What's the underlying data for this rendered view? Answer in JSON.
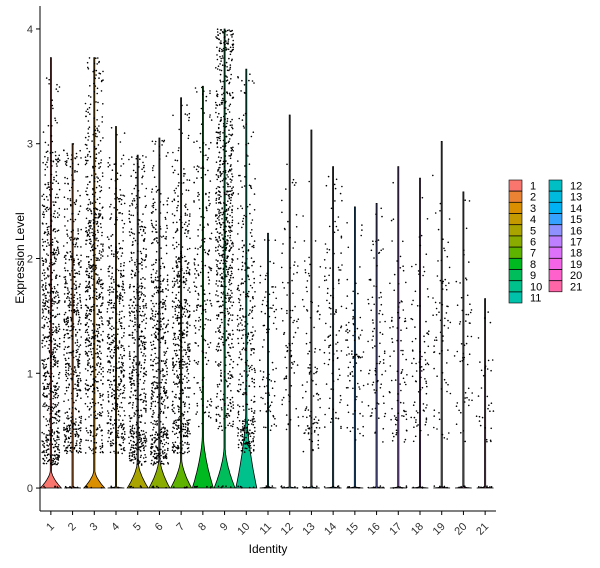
{
  "chart_data": {
    "type": "violin",
    "xlabel": "Identity",
    "ylabel": "Expression Level",
    "ylim": [
      -0.2,
      4.2
    ],
    "yticks": [
      0,
      1,
      2,
      3,
      4
    ],
    "grid": false,
    "legend_position": "right",
    "categories": [
      "1",
      "2",
      "3",
      "4",
      "5",
      "6",
      "7",
      "8",
      "9",
      "10",
      "11",
      "12",
      "13",
      "14",
      "15",
      "16",
      "17",
      "18",
      "19",
      "20",
      "21"
    ],
    "colors": [
      "#F8766D",
      "#EB8335",
      "#DA8F00",
      "#C49A00",
      "#AAA400",
      "#8AAB00",
      "#5EB300",
      "#00B81F",
      "#00BD5C",
      "#00C08B",
      "#00C1AA",
      "#00BFC4",
      "#00BADE",
      "#00B2F3",
      "#35A2FF",
      "#8F91FF",
      "#BE80FF",
      "#DD71FA",
      "#F365E6",
      "#FF61CC",
      "#FF66A8"
    ],
    "series": [
      {
        "name": "1",
        "max": 3.75,
        "zero_violin_height": 0.15,
        "upper_fraction": 0.83,
        "upper_range": [
          0.2,
          3.3
        ],
        "density_center": 1.4
      },
      {
        "name": "2",
        "max": 3.0,
        "zero_violin_height": 0.01,
        "upper_fraction": 0.62,
        "upper_range": [
          0.3,
          3.0
        ],
        "density_center": 1.3
      },
      {
        "name": "3",
        "max": 3.75,
        "zero_violin_height": 0.15,
        "upper_fraction": 0.82,
        "upper_range": [
          0.3,
          3.2
        ],
        "density_center": 1.8
      },
      {
        "name": "4",
        "max": 3.15,
        "zero_violin_height": 0.01,
        "upper_fraction": 0.55,
        "upper_range": [
          0.3,
          2.8
        ],
        "density_center": 1.3
      },
      {
        "name": "5",
        "max": 2.9,
        "zero_violin_height": 0.22,
        "upper_fraction": 0.65,
        "upper_range": [
          0.2,
          2.9
        ],
        "density_center": 1.2
      },
      {
        "name": "6",
        "max": 3.05,
        "zero_violin_height": 0.25,
        "upper_fraction": 0.64,
        "upper_range": [
          0.2,
          3.0
        ],
        "density_center": 1.2
      },
      {
        "name": "7",
        "max": 3.4,
        "zero_violin_height": 0.25,
        "upper_fraction": 0.65,
        "upper_range": [
          0.3,
          3.1
        ],
        "density_center": 1.3
      },
      {
        "name": "8",
        "max": 3.5,
        "zero_violin_height": 0.45,
        "upper_fraction": 0.25,
        "upper_range": [
          0.5,
          3.0
        ],
        "density_center": 1.9
      },
      {
        "name": "9",
        "max": 4.0,
        "zero_violin_height": 0.35,
        "upper_fraction": 0.92,
        "upper_range": [
          0.5,
          3.8
        ],
        "density_center": 2.4
      },
      {
        "name": "10",
        "max": 3.65,
        "zero_violin_height": 0.65,
        "upper_fraction": 0.45,
        "upper_range": [
          0.3,
          3.5
        ],
        "density_center": 1.4
      },
      {
        "name": "11",
        "max": 2.22,
        "zero_violin_height": 0.01,
        "upper_fraction": 0.1,
        "upper_range": [
          0.5,
          2.2
        ],
        "density_center": 1.2
      },
      {
        "name": "12",
        "max": 3.25,
        "zero_violin_height": 0.01,
        "upper_fraction": 0.1,
        "upper_range": [
          0.5,
          2.5
        ],
        "density_center": 1.5
      },
      {
        "name": "13",
        "max": 3.12,
        "zero_violin_height": 0.01,
        "upper_fraction": 0.12,
        "upper_range": [
          0.3,
          2.5
        ],
        "density_center": 1.0
      },
      {
        "name": "14",
        "max": 2.8,
        "zero_violin_height": 0.01,
        "upper_fraction": 0.12,
        "upper_range": [
          0.5,
          2.4
        ],
        "density_center": 1.5
      },
      {
        "name": "15",
        "max": 2.45,
        "zero_violin_height": 0.01,
        "upper_fraction": 0.1,
        "upper_range": [
          0.4,
          2.2
        ],
        "density_center": 1.2
      },
      {
        "name": "16",
        "max": 2.48,
        "zero_violin_height": 0.01,
        "upper_fraction": 0.1,
        "upper_range": [
          0.4,
          2.2
        ],
        "density_center": 1.2
      },
      {
        "name": "17",
        "max": 2.8,
        "zero_violin_height": 0.01,
        "upper_fraction": 0.1,
        "upper_range": [
          0.4,
          2.3
        ],
        "density_center": 1.1
      },
      {
        "name": "18",
        "max": 2.7,
        "zero_violin_height": 0.01,
        "upper_fraction": 0.1,
        "upper_range": [
          0.4,
          2.2
        ],
        "density_center": 1.1
      },
      {
        "name": "19",
        "max": 3.02,
        "zero_violin_height": 0.01,
        "upper_fraction": 0.08,
        "upper_range": [
          0.4,
          2.6
        ],
        "density_center": 1.4
      },
      {
        "name": "20",
        "max": 2.58,
        "zero_violin_height": 0.01,
        "upper_fraction": 0.06,
        "upper_range": [
          0.4,
          2.2
        ],
        "density_center": 1.3
      },
      {
        "name": "21",
        "max": 1.65,
        "zero_violin_height": 0.01,
        "upper_fraction": 0.03,
        "upper_range": [
          0.4,
          1.5
        ],
        "density_center": 0.8
      }
    ]
  }
}
